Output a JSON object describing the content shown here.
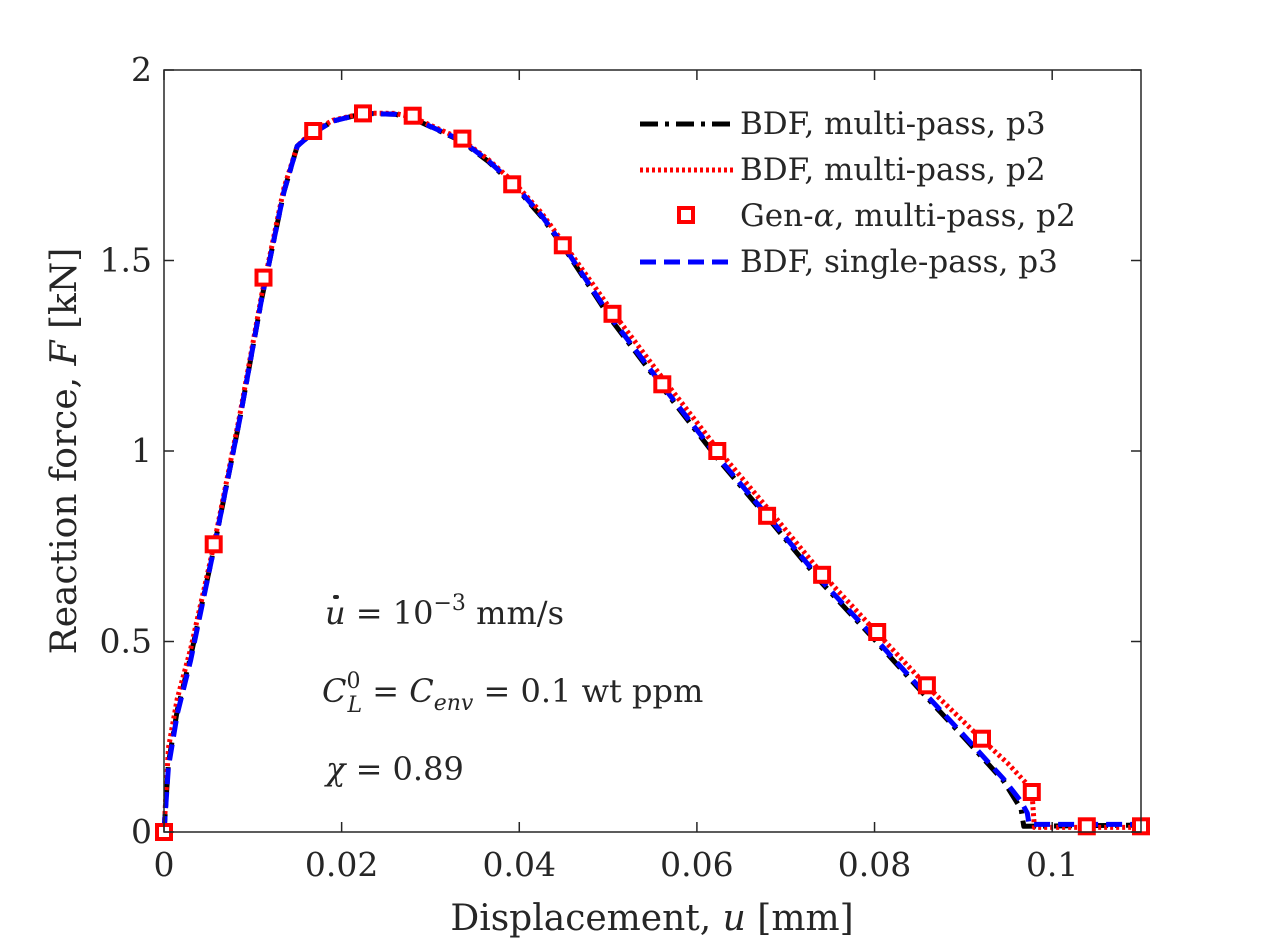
{
  "chart_data": {
    "type": "line",
    "xlabel": {
      "prefix": "Displacement, ",
      "symbol": "u",
      "suffix": " [mm]"
    },
    "ylabel": {
      "prefix": "Reaction force, ",
      "symbol": "F",
      "suffix": " [kN]"
    },
    "xlim": [
      0,
      0.11
    ],
    "ylim": [
      0,
      2
    ],
    "xticks": [
      {
        "value": 0,
        "label": "0"
      },
      {
        "value": 0.02,
        "label": "0.02"
      },
      {
        "value": 0.04,
        "label": "0.04"
      },
      {
        "value": 0.06,
        "label": "0.06"
      },
      {
        "value": 0.08,
        "label": "0.08"
      },
      {
        "value": 0.1,
        "label": "0.1"
      }
    ],
    "yticks": [
      {
        "value": 0,
        "label": "0"
      },
      {
        "value": 0.5,
        "label": "0.5"
      },
      {
        "value": 1,
        "label": "1"
      },
      {
        "value": 1.5,
        "label": "1.5"
      },
      {
        "value": 2,
        "label": "2"
      }
    ],
    "legend_position": "top-right",
    "series": [
      {
        "name": "BDF, multi-pass, p3",
        "style": "dashdot",
        "color": "#000000",
        "x": [
          0,
          0.0005,
          0.0015,
          0.003,
          0.0055,
          0.0085,
          0.011,
          0.0135,
          0.015,
          0.0165,
          0.019,
          0.0225,
          0.026,
          0.028,
          0.0335,
          0.0365,
          0.0395,
          0.0425,
          0.045,
          0.0505,
          0.0565,
          0.0625,
          0.0685,
          0.074,
          0.08,
          0.0858,
          0.09,
          0.0945,
          0.0965,
          0.0968,
          0.11
        ],
        "y": [
          0,
          0.18,
          0.32,
          0.46,
          0.73,
          1.08,
          1.4,
          1.68,
          1.8,
          1.83,
          1.866,
          1.886,
          1.884,
          1.873,
          1.813,
          1.76,
          1.695,
          1.615,
          1.535,
          1.34,
          1.155,
          0.975,
          0.81,
          0.655,
          0.505,
          0.355,
          0.25,
          0.135,
          0.06,
          0.015,
          0.018
        ]
      },
      {
        "name": "BDF, multi-pass, p2",
        "style": "dotted",
        "color": "#ff0000",
        "x": [
          0,
          0.0005,
          0.0015,
          0.003,
          0.0055,
          0.0085,
          0.011,
          0.0135,
          0.015,
          0.0165,
          0.019,
          0.0225,
          0.026,
          0.028,
          0.0335,
          0.0365,
          0.0395,
          0.0425,
          0.045,
          0.0505,
          0.0565,
          0.0625,
          0.0685,
          0.074,
          0.08,
          0.0858,
          0.092,
          0.095,
          0.097,
          0.0977,
          0.098,
          0.11
        ],
        "y": [
          0,
          0.22,
          0.35,
          0.48,
          0.74,
          1.09,
          1.41,
          1.69,
          1.8,
          1.835,
          1.868,
          1.887,
          1.886,
          1.876,
          1.818,
          1.765,
          1.703,
          1.625,
          1.545,
          1.365,
          1.18,
          1.0,
          0.835,
          0.68,
          0.53,
          0.385,
          0.245,
          0.18,
          0.13,
          0.11,
          0.012,
          0.012
        ]
      },
      {
        "name": "Gen-α, multi-pass, p2",
        "name_parts": [
          "Gen-",
          "α",
          ", multi-pass, p2"
        ],
        "style": "markers",
        "color": "#ff0000",
        "x": [
          0,
          0.0056,
          0.0112,
          0.0168,
          0.0224,
          0.028,
          0.0336,
          0.0392,
          0.0449,
          0.0505,
          0.0561,
          0.0623,
          0.0679,
          0.0741,
          0.0803,
          0.0859,
          0.0921,
          0.0977,
          0.1039,
          0.11
        ],
        "y": [
          0,
          0.755,
          1.455,
          1.84,
          1.886,
          1.88,
          1.82,
          1.7,
          1.54,
          1.36,
          1.175,
          1.0,
          0.83,
          0.675,
          0.525,
          0.385,
          0.245,
          0.105,
          0.015,
          0.015
        ]
      },
      {
        "name": "BDF, single-pass, p3",
        "style": "dashed",
        "color": "#0000ff",
        "x": [
          0,
          0.0005,
          0.0015,
          0.003,
          0.0055,
          0.0085,
          0.011,
          0.0135,
          0.015,
          0.0165,
          0.019,
          0.0225,
          0.026,
          0.028,
          0.0335,
          0.0365,
          0.0395,
          0.0425,
          0.045,
          0.0505,
          0.0565,
          0.0625,
          0.0685,
          0.074,
          0.08,
          0.0858,
          0.09,
          0.0945,
          0.0965,
          0.0972,
          0.0974,
          0.11
        ],
        "y": [
          0,
          0.17,
          0.31,
          0.45,
          0.73,
          1.08,
          1.4,
          1.68,
          1.8,
          1.83,
          1.866,
          1.886,
          1.884,
          1.873,
          1.815,
          1.762,
          1.698,
          1.618,
          1.538,
          1.345,
          1.16,
          0.98,
          0.815,
          0.66,
          0.51,
          0.36,
          0.255,
          0.14,
          0.08,
          0.05,
          0.02,
          0.02
        ]
      }
    ],
    "annotations": {
      "rate": {
        "lhs": "u",
        "eq": " = 10",
        "exp": "−3",
        "unit": " mm/s"
      },
      "concentration": {
        "c": "C",
        "c_sup": "0",
        "c_sub": "L",
        "eq1": " = ",
        "c2": "C",
        "c2_sub": "env",
        "eq2": " = 0.1 wt ppm"
      },
      "chi": {
        "sym": "χ",
        "eq": " = 0.89"
      }
    }
  }
}
